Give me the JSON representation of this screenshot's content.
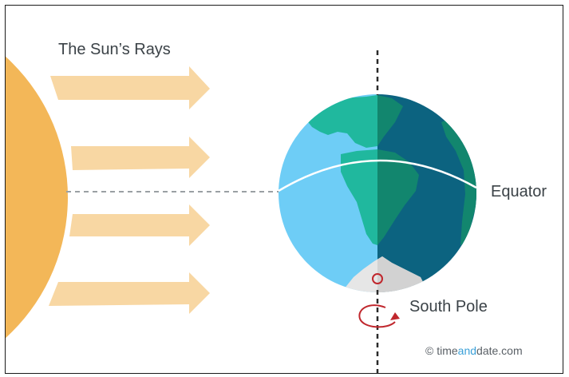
{
  "labels": {
    "sun_rays": "The Sun’s Rays",
    "equator": "Equator",
    "south_pole": "South Pole"
  },
  "credit": {
    "symbol": "©",
    "part1": "time",
    "part2": "and",
    "part3": "date",
    "part4": ".com"
  },
  "colors": {
    "sun": "#f3b758",
    "ray": "#f8d7a3",
    "ocean_light": "#6ecdf6",
    "ocean_dark": "#0c6380",
    "land_light": "#20b89e",
    "land_dark": "#12866e",
    "antarctica": "#e6e6e6",
    "pole_marker": "#c0272d",
    "axis": "#2a2a2a",
    "equator_line": "#ffffff"
  },
  "icons": [
    "sun-shape",
    "ray-arrow",
    "earth-globe",
    "rotation-arrow-icon",
    "pole-marker-icon",
    "copyright-icon"
  ]
}
